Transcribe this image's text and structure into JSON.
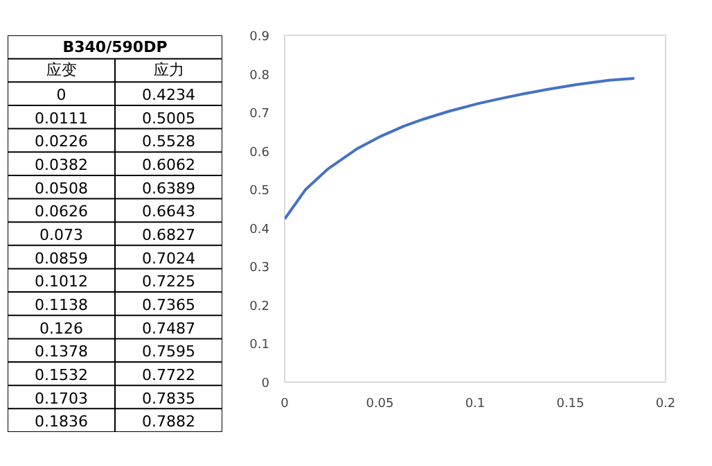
{
  "chart_data": [
    {
      "type": "other",
      "title": "B340/590DP",
      "annotations": [
        "应变",
        "应力",
        "0",
        "0.4234",
        "0.0111",
        "0.5005",
        "0.0226",
        "0.5528",
        "0.0382",
        "0.6062",
        "0.0508",
        "0.6389",
        "0.0626",
        "0.6643",
        "0.073",
        "0.6827",
        "0.0859",
        "0.7024",
        "0.1012",
        "0.7225",
        "0.1138",
        "0.7365",
        "0.126",
        "0.7487",
        "0.1378",
        "0.7595",
        "0.1532",
        "0.7722",
        "0.1703",
        "0.7835",
        "0.1836",
        "0.7882"
      ]
    },
    {
      "type": "line",
      "x": [
        0,
        0.0111,
        0.0226,
        0.0382,
        0.0508,
        0.0626,
        0.073,
        0.0859,
        0.1012,
        0.1138,
        0.126,
        0.1378,
        0.1532,
        0.1703,
        0.1836
      ],
      "series": [
        {
          "color": "#4472c4",
          "values": [
            0.4234,
            0.5005,
            0.5528,
            0.6062,
            0.6389,
            0.6643,
            0.6827,
            0.7024,
            0.7225,
            0.7365,
            0.7487,
            0.7595,
            0.7722,
            0.7835,
            0.7882
          ]
        }
      ],
      "xlim": [
        0,
        0.2
      ],
      "xticks": [
        0,
        0.05,
        0.1,
        0.15,
        0.2
      ],
      "ylim": [
        0,
        0.9
      ],
      "yticks": [
        0,
        0.1,
        0.2,
        0.3,
        0.4,
        0.5,
        0.6,
        0.7,
        0.8,
        0.9
      ],
      "marker": "none",
      "line_style": "solid"
    }
  ]
}
